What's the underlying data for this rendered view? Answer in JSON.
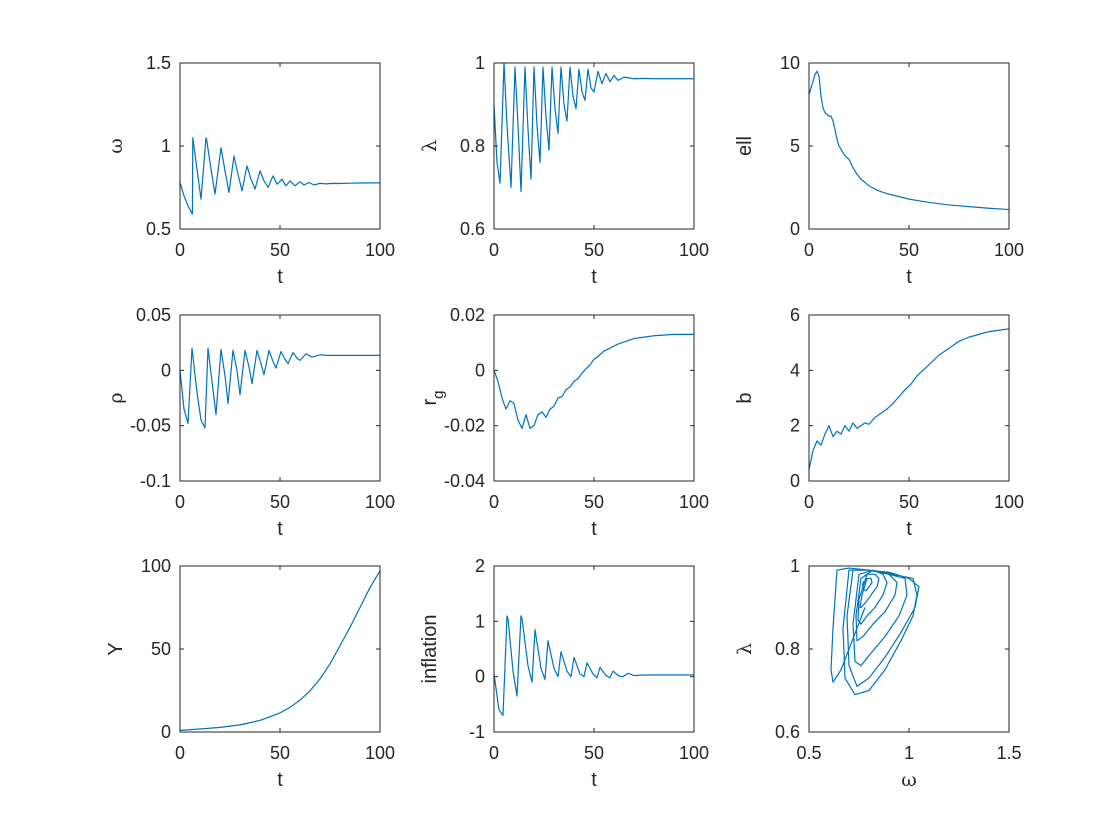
{
  "chart_data": [
    {
      "type": "line",
      "xlabel": "t",
      "ylabel": "ω",
      "xlim": [
        0,
        100
      ],
      "ylim": [
        0.5,
        1.5
      ],
      "xticks": [
        0,
        50,
        100
      ],
      "yticks": [
        0.5,
        1,
        1.5
      ],
      "ytick_labels": [
        "0.5",
        "1",
        "1.5"
      ],
      "line_color": "#0072BD",
      "series": [
        {
          "x": [
            0,
            2,
            4,
            6.2,
            6.4,
            8.5,
            10.5,
            13,
            13.3,
            15.5,
            17.5,
            20.5,
            22.5,
            24.5,
            27,
            29,
            31,
            33.5,
            35.5,
            37.5,
            40,
            42,
            44,
            46.5,
            48.5,
            51,
            53,
            55,
            57.5,
            60,
            62,
            64.5,
            67,
            70,
            73,
            76,
            80,
            85,
            90,
            95,
            100
          ],
          "y": [
            0.78,
            0.7,
            0.64,
            0.59,
            1.05,
            0.86,
            0.68,
            1.05,
            1.04,
            0.86,
            0.71,
            0.99,
            0.85,
            0.72,
            0.94,
            0.83,
            0.73,
            0.88,
            0.8,
            0.74,
            0.85,
            0.79,
            0.75,
            0.82,
            0.77,
            0.8,
            0.76,
            0.79,
            0.76,
            0.785,
            0.765,
            0.78,
            0.765,
            0.775,
            0.772,
            0.775,
            0.774,
            0.776,
            0.777,
            0.778,
            0.778
          ]
        }
      ]
    },
    {
      "type": "line",
      "xlabel": "t",
      "ylabel": "λ",
      "xlim": [
        0,
        100
      ],
      "ylim": [
        0.6,
        1
      ],
      "xticks": [
        0,
        50,
        100
      ],
      "yticks": [
        0.6,
        0.8,
        1
      ],
      "ytick_labels": [
        "0.6",
        "0.8",
        "1"
      ],
      "line_color": "#0072BD",
      "series": [
        {
          "x": [
            0,
            1.5,
            3,
            5,
            6.5,
            8.5,
            10.5,
            12,
            13.5,
            15.5,
            17,
            18.5,
            20,
            21.5,
            23,
            24.5,
            26,
            27.5,
            29,
            30.5,
            32,
            33.5,
            35,
            36.5,
            38,
            39.5,
            41,
            42.5,
            44,
            45.5,
            47,
            48.5,
            50,
            52,
            54,
            56,
            58,
            60,
            62,
            65,
            70,
            75,
            80,
            85,
            90,
            95,
            100
          ],
          "y": [
            0.9,
            0.76,
            0.71,
            1.0,
            0.85,
            0.7,
            0.99,
            0.85,
            0.69,
            0.99,
            0.84,
            0.72,
            0.99,
            0.85,
            0.76,
            0.99,
            0.87,
            0.79,
            0.99,
            0.89,
            0.83,
            0.99,
            0.9,
            0.86,
            0.99,
            0.92,
            0.89,
            0.985,
            0.93,
            0.91,
            0.985,
            0.94,
            0.93,
            0.98,
            0.95,
            0.975,
            0.955,
            0.97,
            0.958,
            0.966,
            0.962,
            0.963,
            0.962,
            0.962,
            0.962,
            0.962,
            0.962
          ]
        }
      ]
    },
    {
      "type": "line",
      "xlabel": "t",
      "ylabel": "ell",
      "xlim": [
        0,
        100
      ],
      "ylim": [
        0,
        10
      ],
      "xticks": [
        0,
        50,
        100
      ],
      "yticks": [
        0,
        5,
        10
      ],
      "ytick_labels": [
        "0",
        "5",
        "10"
      ],
      "line_color": "#0072BD",
      "series": [
        {
          "x": [
            0,
            1,
            2,
            3,
            4,
            5,
            6,
            7,
            8,
            9,
            10,
            11,
            12,
            13,
            14,
            15,
            16,
            17,
            18,
            19,
            20,
            22,
            24,
            26,
            28,
            30,
            33,
            36,
            40,
            45,
            50,
            55,
            60,
            70,
            80,
            90,
            100
          ],
          "y": [
            8.1,
            8.5,
            8.9,
            9.3,
            9.5,
            9.2,
            8.0,
            7.3,
            7.0,
            6.9,
            6.8,
            6.8,
            6.5,
            6.0,
            5.4,
            5.0,
            4.8,
            4.6,
            4.4,
            4.3,
            4.2,
            3.7,
            3.3,
            3.0,
            2.8,
            2.6,
            2.4,
            2.25,
            2.1,
            1.95,
            1.8,
            1.7,
            1.6,
            1.45,
            1.35,
            1.25,
            1.17
          ]
        }
      ]
    },
    {
      "type": "line",
      "xlabel": "t",
      "ylabel": "ρ",
      "xlim": [
        0,
        100
      ],
      "ylim": [
        -0.1,
        0.05
      ],
      "xticks": [
        0,
        50,
        100
      ],
      "yticks": [
        -0.1,
        -0.05,
        0,
        0.05
      ],
      "ytick_labels": [
        "-0.1",
        "-0.05",
        "0",
        "0.05"
      ],
      "line_color": "#0072BD",
      "series": [
        {
          "x": [
            0,
            2,
            4,
            6,
            8.5,
            10.5,
            12.5,
            14,
            16,
            18,
            20.5,
            22.5,
            24,
            26.5,
            28.5,
            30,
            32.5,
            34.5,
            36,
            38.5,
            40.5,
            42,
            44.5,
            46.5,
            48,
            50.5,
            52.5,
            54,
            56.5,
            58.5,
            60,
            63,
            66,
            70,
            75,
            80,
            90,
            100
          ],
          "y": [
            0.0,
            -0.035,
            -0.048,
            0.02,
            -0.02,
            -0.045,
            -0.052,
            0.02,
            -0.01,
            -0.04,
            0.019,
            -0.005,
            -0.03,
            0.018,
            0.0,
            -0.022,
            0.018,
            0.003,
            -0.012,
            0.018,
            0.006,
            -0.004,
            0.018,
            0.008,
            0.002,
            0.017,
            0.01,
            0.006,
            0.016,
            0.011,
            0.009,
            0.015,
            0.012,
            0.014,
            0.0135,
            0.0135,
            0.0135,
            0.0135
          ]
        }
      ]
    },
    {
      "type": "line",
      "xlabel": "t",
      "ylabel": "r",
      "ylabel_subscript": "g",
      "xlim": [
        0,
        100
      ],
      "ylim": [
        -0.04,
        0.02
      ],
      "xticks": [
        0,
        50,
        100
      ],
      "yticks": [
        -0.04,
        -0.02,
        0,
        0.02
      ],
      "ytick_labels": [
        "-0.04",
        "-0.02",
        "0",
        "0.02"
      ],
      "line_color": "#0072BD",
      "series": [
        {
          "x": [
            0,
            2,
            4,
            6,
            8,
            10,
            12,
            14,
            16,
            18,
            20,
            22,
            24,
            26,
            28,
            30,
            32,
            34,
            36,
            38,
            40,
            42,
            44,
            46,
            48,
            50,
            52,
            55,
            58,
            62,
            66,
            70,
            75,
            80,
            90,
            100
          ],
          "y": [
            0.0,
            -0.004,
            -0.01,
            -0.014,
            -0.011,
            -0.012,
            -0.018,
            -0.021,
            -0.016,
            -0.021,
            -0.02,
            -0.016,
            -0.015,
            -0.017,
            -0.014,
            -0.013,
            -0.01,
            -0.0095,
            -0.007,
            -0.006,
            -0.004,
            -0.003,
            -0.001,
            0.0005,
            0.002,
            0.004,
            0.005,
            0.007,
            0.008,
            0.0095,
            0.0105,
            0.0115,
            0.012,
            0.0125,
            0.013,
            0.013
          ]
        }
      ]
    },
    {
      "type": "line",
      "xlabel": "t",
      "ylabel": "b",
      "xlim": [
        0,
        100
      ],
      "ylim": [
        0,
        6
      ],
      "xticks": [
        0,
        50,
        100
      ],
      "yticks": [
        0,
        2,
        4,
        6
      ],
      "ytick_labels": [
        "0",
        "2",
        "4",
        "6"
      ],
      "line_color": "#0072BD",
      "series": [
        {
          "x": [
            0,
            2,
            4,
            6,
            8,
            10,
            12,
            14,
            16,
            18,
            20,
            22,
            24,
            26,
            28,
            30,
            33,
            36,
            39,
            42,
            45,
            48,
            51,
            54,
            57,
            60,
            65,
            70,
            75,
            80,
            85,
            90,
            95,
            100
          ],
          "y": [
            0.4,
            1.1,
            1.45,
            1.3,
            1.7,
            2.0,
            1.6,
            1.8,
            1.7,
            2.0,
            1.8,
            2.1,
            1.9,
            2.0,
            2.1,
            2.05,
            2.3,
            2.45,
            2.6,
            2.8,
            3.05,
            3.3,
            3.5,
            3.8,
            4.0,
            4.2,
            4.55,
            4.8,
            5.05,
            5.2,
            5.3,
            5.4,
            5.45,
            5.5
          ]
        }
      ]
    },
    {
      "type": "line",
      "xlabel": "t",
      "ylabel": "Y",
      "xlim": [
        0,
        100
      ],
      "ylim": [
        0,
        100
      ],
      "xticks": [
        0,
        50,
        100
      ],
      "yticks": [
        0,
        50,
        100
      ],
      "ytick_labels": [
        "0",
        "50",
        "100"
      ],
      "line_color": "#0072BD",
      "series": [
        {
          "x": [
            0,
            10,
            20,
            30,
            40,
            50,
            55,
            60,
            65,
            70,
            75,
            80,
            85,
            90,
            95,
            100
          ],
          "y": [
            1,
            1.8,
            2.8,
            4.3,
            7.0,
            11.5,
            14.8,
            19.2,
            24.8,
            32,
            41,
            52,
            63,
            75,
            87,
            97
          ]
        }
      ]
    },
    {
      "type": "line",
      "xlabel": "t",
      "ylabel": "inflation",
      "xlim": [
        0,
        100
      ],
      "ylim": [
        -1,
        2
      ],
      "xticks": [
        0,
        50,
        100
      ],
      "yticks": [
        -1,
        0,
        1,
        2
      ],
      "ytick_labels": [
        "-1",
        "0",
        "1",
        "2"
      ],
      "line_color": "#0072BD",
      "series": [
        {
          "x": [
            0,
            2.5,
            4.5,
            6.5,
            7,
            9.5,
            11.5,
            13.5,
            14,
            17,
            19,
            20.5,
            23.5,
            25.5,
            27,
            30,
            32,
            33.5,
            36.5,
            38.5,
            40,
            43,
            45,
            46.5,
            49.5,
            51.5,
            53,
            56,
            58,
            59.5,
            62.5,
            64.5,
            67,
            70,
            75,
            80,
            90,
            100
          ],
          "y": [
            0.05,
            -0.6,
            -0.7,
            1.1,
            1.05,
            0.1,
            -0.35,
            1.1,
            1.05,
            0.2,
            -0.1,
            0.85,
            0.15,
            -0.05,
            0.65,
            0.15,
            0.0,
            0.45,
            0.1,
            0.0,
            0.35,
            0.05,
            0.0,
            0.25,
            0.05,
            -0.02,
            0.17,
            0.02,
            -0.02,
            0.1,
            0.01,
            0.0,
            0.06,
            0.02,
            0.03,
            0.03,
            0.03,
            0.03
          ]
        }
      ]
    },
    {
      "type": "line",
      "xlabel": "ω",
      "ylabel": "λ",
      "xlim": [
        0.5,
        1.5
      ],
      "ylim": [
        0.6,
        1
      ],
      "xticks": [
        0.5,
        1,
        1.5
      ],
      "yticks": [
        0.6,
        0.8,
        1
      ],
      "xtick_labels": [
        "0.5",
        "1",
        "1.5"
      ],
      "ytick_labels": [
        "0.6",
        "0.8",
        "1"
      ],
      "line_color": "#0072BD",
      "series": [
        {
          "x": [
            0.78,
            0.74,
            0.7,
            0.66,
            0.62,
            0.61,
            0.62,
            0.64,
            0.7,
            0.8,
            0.92,
            1.02,
            1.04,
            1.02,
            0.96,
            0.88,
            0.8,
            0.73,
            0.68,
            0.67,
            0.7,
            0.79,
            0.9,
            1.0,
            1.05,
            1.03,
            0.96,
            0.88,
            0.8,
            0.74,
            0.7,
            0.69,
            0.72,
            0.8,
            0.9,
            0.98,
            0.99,
            0.95,
            0.88,
            0.81,
            0.76,
            0.73,
            0.72,
            0.75,
            0.82,
            0.9,
            0.94,
            0.93,
            0.88,
            0.82,
            0.77,
            0.74,
            0.735,
            0.76,
            0.82,
            0.87,
            0.89,
            0.87,
            0.83,
            0.79,
            0.76,
            0.745,
            0.75,
            0.79,
            0.83,
            0.85,
            0.84,
            0.81,
            0.78,
            0.76,
            0.755,
            0.765,
            0.79,
            0.81,
            0.815,
            0.8,
            0.785,
            0.772,
            0.768,
            0.772,
            0.778,
            0.778
          ],
          "y": [
            0.9,
            0.85,
            0.8,
            0.75,
            0.72,
            0.75,
            0.85,
            0.99,
            0.995,
            0.99,
            0.98,
            0.97,
            0.93,
            0.88,
            0.82,
            0.75,
            0.7,
            0.69,
            0.73,
            0.85,
            0.99,
            0.99,
            0.985,
            0.97,
            0.95,
            0.9,
            0.84,
            0.78,
            0.73,
            0.71,
            0.76,
            0.88,
            0.99,
            0.99,
            0.98,
            0.97,
            0.93,
            0.88,
            0.83,
            0.79,
            0.76,
            0.77,
            0.86,
            0.98,
            0.99,
            0.98,
            0.96,
            0.93,
            0.89,
            0.86,
            0.83,
            0.82,
            0.88,
            0.97,
            0.99,
            0.98,
            0.96,
            0.93,
            0.9,
            0.88,
            0.86,
            0.87,
            0.92,
            0.98,
            0.98,
            0.97,
            0.95,
            0.93,
            0.91,
            0.9,
            0.9,
            0.93,
            0.97,
            0.97,
            0.96,
            0.95,
            0.94,
            0.945,
            0.955,
            0.962,
            0.962,
            0.962
          ]
        }
      ]
    }
  ]
}
